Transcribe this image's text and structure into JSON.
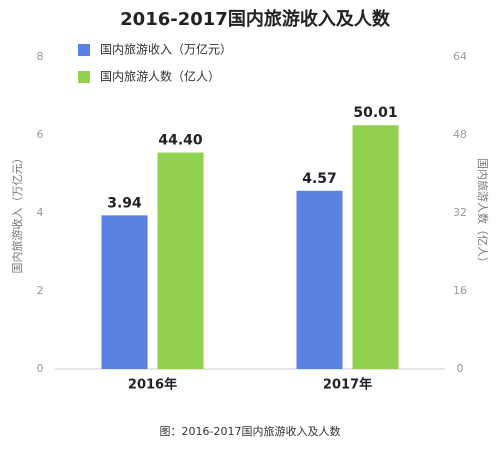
{
  "chart_data": {
    "type": "bar",
    "title": "2016-2017国内旅游收入及人数",
    "caption": "图：2016-2017国内旅游收入及人数",
    "categories": [
      "2016年",
      "2017年"
    ],
    "series": [
      {
        "name": "国内旅游收入（万亿元）",
        "color": "#5b82e0",
        "values": [
          3.94,
          4.57
        ]
      },
      {
        "name": "国内旅游人数（亿人）",
        "color": "#92d050",
        "axis": "y2",
        "values": [
          44.4,
          50.01
        ],
        "value_labels": [
          "44.40",
          "50.01"
        ]
      }
    ],
    "ylabel": "国内旅游收入（万亿元）",
    "y2label": "国内旅游人数（亿人）",
    "ylim": [
      0,
      8
    ],
    "yticks": [
      0,
      2,
      4,
      6,
      8
    ],
    "y2lim": [
      0,
      64
    ],
    "y2ticks": [
      0,
      16,
      32,
      48,
      64
    ],
    "grid": false,
    "legend": "upper left"
  }
}
